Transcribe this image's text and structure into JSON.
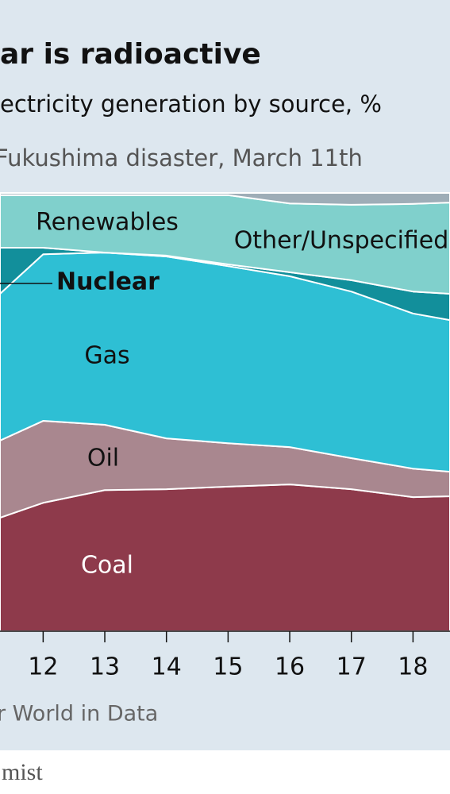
{
  "chart_data": {
    "type": "stacked-area",
    "title": "ar is radioactive",
    "subtitle": "ectricity generation by source, %",
    "annotation": "Fukushima disaster, March 11th",
    "source": "r World in Data",
    "footer": "mist",
    "x": [
      11.3,
      12,
      13,
      14,
      15,
      16,
      17,
      18,
      18.6
    ],
    "xlim": [
      11.3,
      18.6
    ],
    "xticks": [
      12,
      13,
      14,
      15,
      16,
      17,
      18
    ],
    "ylim": [
      0,
      100
    ],
    "series": [
      {
        "name": "Coal",
        "color": "#8e3a4b",
        "values": [
          25.9,
          29.3,
          32.2,
          32.4,
          33,
          33.5,
          32.4,
          30.6,
          30.8
        ]
      },
      {
        "name": "Oil",
        "color": "#a9878f",
        "values": [
          17.6,
          18.7,
          14.9,
          11.6,
          9.9,
          8.5,
          7.1,
          6.5,
          5.6
        ]
      },
      {
        "name": "Gas",
        "color": "#2ebfd4",
        "values": [
          33.5,
          38,
          39.3,
          41.5,
          40.4,
          39,
          38,
          35.4,
          34.6
        ]
      },
      {
        "name": "Nuclear",
        "color": "#128f9b",
        "values": [
          10.5,
          1.5,
          0,
          0.2,
          0.4,
          0.9,
          2.6,
          5,
          6
        ]
      },
      {
        "name": "Renewables",
        "color": "#80d0cc",
        "values": [
          12,
          12,
          13.1,
          13.8,
          15.8,
          15.7,
          17.2,
          20,
          20.8
        ]
      },
      {
        "name": "Other/Unspecified",
        "color": "#9eadb7",
        "values": [
          0.5,
          0.5,
          0.5,
          0.5,
          0.5,
          2.4,
          2.7,
          2.5,
          2.2
        ]
      }
    ]
  }
}
